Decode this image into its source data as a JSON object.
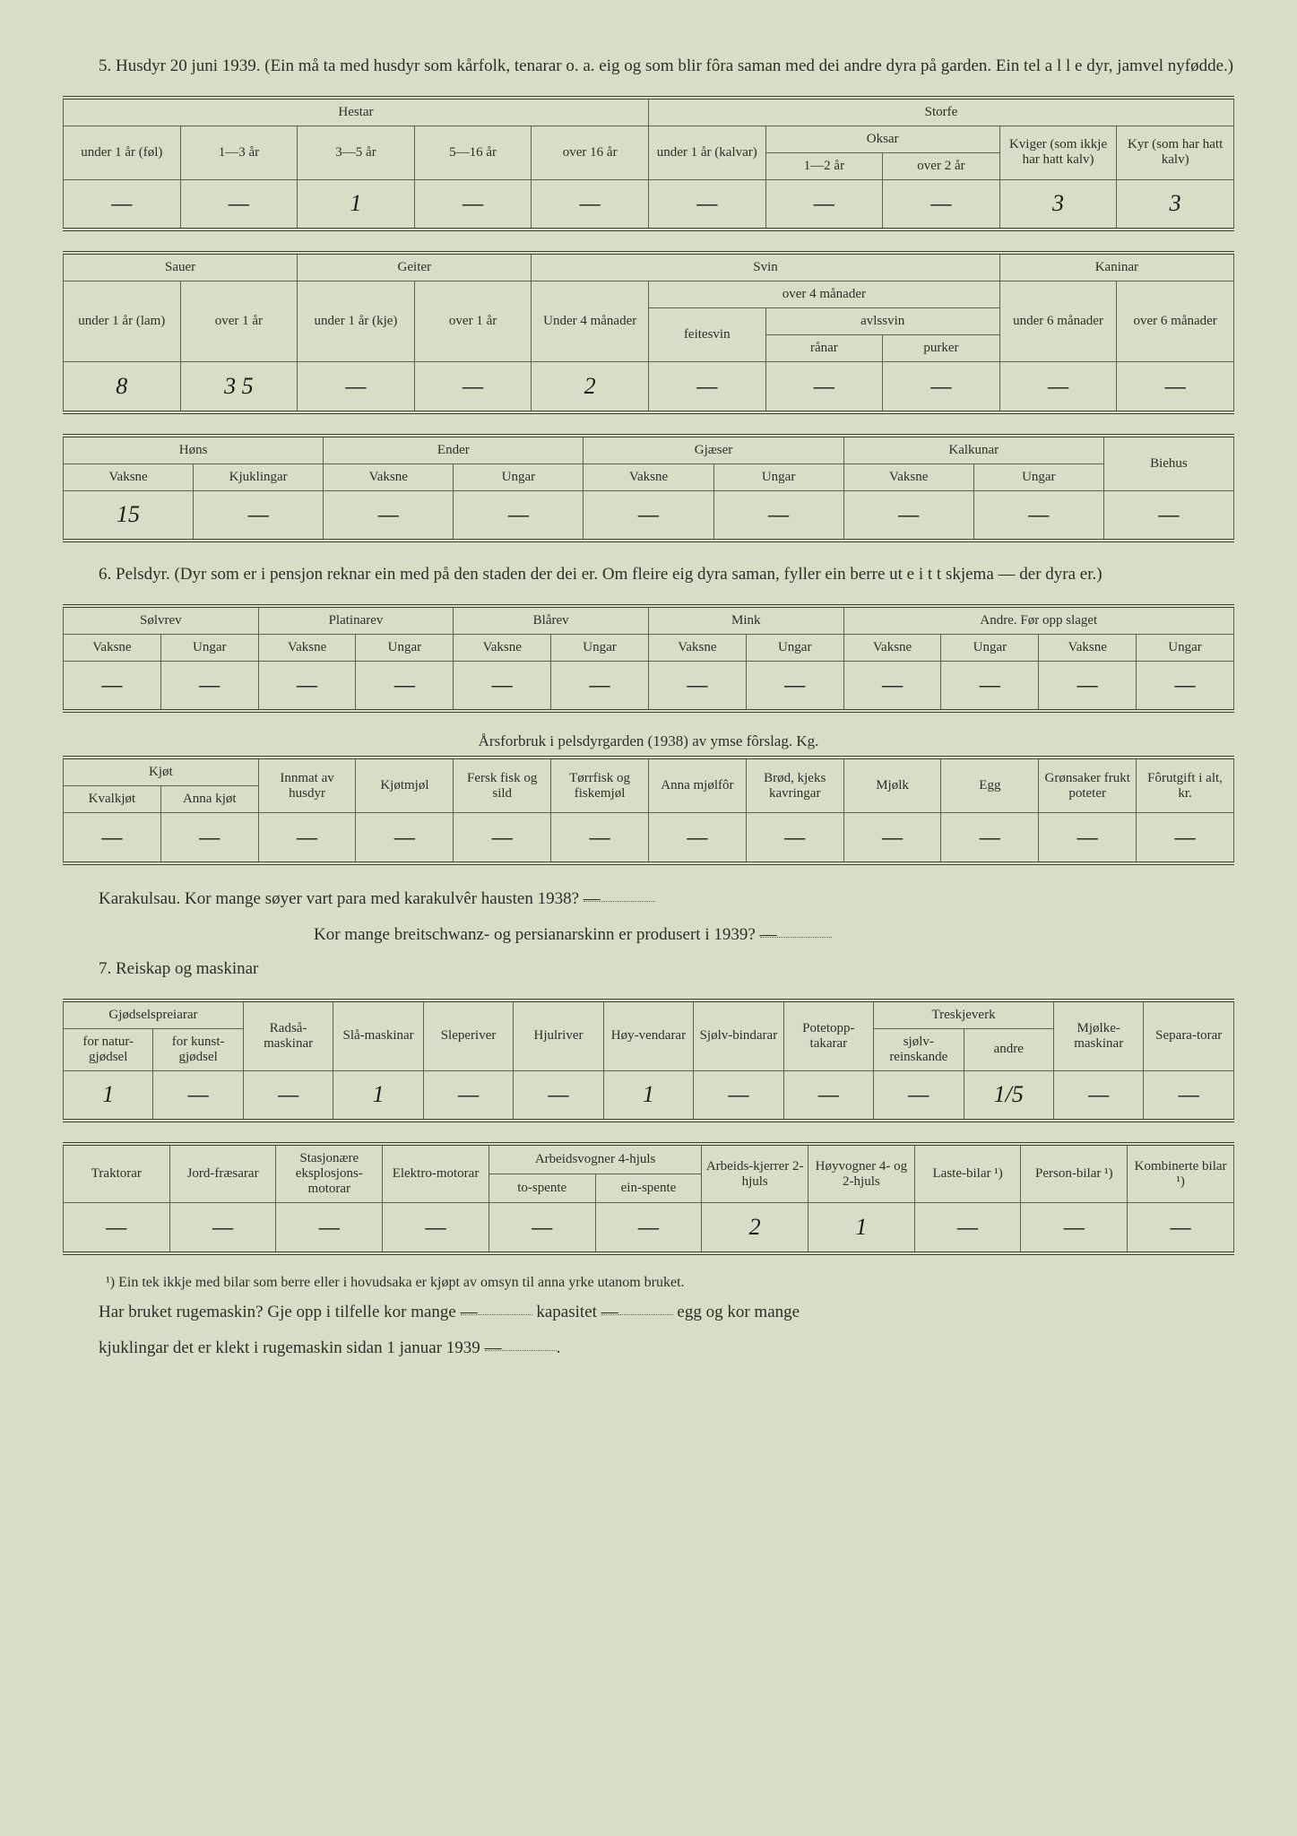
{
  "colors": {
    "paper_bg": "#d5dfc8",
    "ink": "#2a3028",
    "rule": "#5a6254",
    "handwriting": "#1a1a1a"
  },
  "typography": {
    "body_family": "Georgia, 'Times New Roman', serif",
    "body_size_pt": 14,
    "handwriting_family": "'Segoe Script', cursive",
    "handwriting_size_pt": 20
  },
  "s5": {
    "num": "5.",
    "title": "Husdyr 20 juni 1939.  (Ein må ta med husdyr som kårfolk, tenarar o. a. eig og som blir fôra saman med dei andre dyra på garden.  Ein tel a l l e dyr, jamvel nyfødde.)",
    "hestar_storfe": {
      "group_l": "Hestar",
      "group_r": "Storfe",
      "h1": "under 1 år (føl)",
      "h2": "1—3 år",
      "h3": "3—5 år",
      "h4": "5—16 år",
      "h5": "over 16 år",
      "s1": "under 1 år (kalvar)",
      "s2g": "Oksar",
      "s2a": "1—2 år",
      "s2b": "over 2 år",
      "s3": "Kviger (som ikkje har hatt kalv)",
      "s4": "Kyr (som har hatt kalv)",
      "v": [
        "—",
        "—",
        "1",
        "—",
        "—",
        "—",
        "—",
        "—",
        "3",
        "3"
      ]
    },
    "sauer_etc": {
      "g1": "Sauer",
      "g2": "Geiter",
      "g3": "Svin",
      "g4": "Kaninar",
      "sa1": "under 1 år (lam)",
      "sa2": "over 1 år",
      "ge1": "under 1 år (kje)",
      "ge2": "over 1 år",
      "sv1": "Under 4 månader",
      "sv_o4": "over 4 månader",
      "sv2": "feitesvin",
      "sv3g": "avlssvin",
      "sv3a": "rånar",
      "sv3b": "purker",
      "ka1": "under 6 månader",
      "ka2": "over 6 månader",
      "v": [
        "8",
        "3 5",
        "—",
        "—",
        "2",
        "—",
        "—",
        "—",
        "—",
        "—"
      ]
    },
    "fjorfe": {
      "g1": "Høns",
      "g2": "Ender",
      "g3": "Gjæser",
      "g4": "Kalkunar",
      "g5": "Biehus",
      "c1": "Vaksne",
      "c2": "Kjuklingar",
      "c3": "Vaksne",
      "c4": "Ungar",
      "c5": "Vaksne",
      "c6": "Ungar",
      "c7": "Vaksne",
      "c8": "Ungar",
      "v": [
        "15",
        "—",
        "—",
        "—",
        "—",
        "—",
        "—",
        "—",
        "—"
      ]
    }
  },
  "s6": {
    "num": "6.",
    "title": "Pelsdyr.  (Dyr som er i pensjon reknar ein med på den staden der dei er.  Om fleire eig dyra saman, fyller ein berre ut e i t t skjema — der dyra er.)",
    "tbl1": {
      "g1": "Sølvrev",
      "g2": "Platinarev",
      "g3": "Blårev",
      "g4": "Mink",
      "g5": "Andre.  Før opp slaget",
      "va": "Vaksne",
      "un": "Ungar",
      "v": [
        "—",
        "—",
        "—",
        "—",
        "—",
        "—",
        "—",
        "—",
        "—",
        "—",
        "—",
        "—"
      ]
    },
    "caption": "Årsforbruk i pelsdyrgarden (1938) av ymse fôrslag. Kg.",
    "tbl2": {
      "kjg": "Kjøt",
      "k1": "Kvalkjøt",
      "k2": "Anna kjøt",
      "c3": "Innmat av husdyr",
      "c4": "Kjøtmjøl",
      "c5": "Fersk fisk og sild",
      "c6": "Tørrfisk og fiskemjøl",
      "c7": "Anna mjølfôr",
      "c8": "Brød, kjeks kavringar",
      "c9": "Mjølk",
      "c10": "Egg",
      "c11": "Grønsaker frukt poteter",
      "c12": "Fôrutgift i alt, kr.",
      "v": [
        "—",
        "—",
        "—",
        "—",
        "—",
        "—",
        "—",
        "—",
        "—",
        "—",
        "—",
        "—"
      ]
    },
    "karakul1": "Karakulsau.   Kor mange søyer vart para med karakulvêr hausten 1938?",
    "karakul2": "Kor mange breitschwanz- og persianarskinn er produsert i 1939?",
    "kar_v1": "—",
    "kar_v2": "—"
  },
  "s7": {
    "num": "7.",
    "title": "Reiskap og maskinar",
    "tbl1": {
      "g1": "Gjødselspreiarar",
      "g1a": "for natur-gjødsel",
      "g1b": "for kunst-gjødsel",
      "c3": "Radså-maskinar",
      "c4": "Slå-maskinar",
      "c5": "Sleperiver",
      "c6": "Hjulriver",
      "c7": "Høy-vendarar",
      "c8": "Sjølv-bindarar",
      "c9": "Potetopp-takarar",
      "g10": "Treskjeverk",
      "g10a": "sjølv-reinskande",
      "g10b": "andre",
      "c11": "Mjølke-maskinar",
      "c12": "Separa-torar",
      "v": [
        "1",
        "—",
        "—",
        "1",
        "—",
        "—",
        "1",
        "—",
        "—",
        "—",
        "1/5",
        "—",
        "—"
      ]
    },
    "tbl2": {
      "c1": "Traktorar",
      "c2": "Jord-fræsarar",
      "c3": "Stasjonære eksplosjons-motorar",
      "c4": "Elektro-motorar",
      "g5": "Arbeidsvogner 4-hjuls",
      "g5a": "to-spente",
      "g5b": "ein-spente",
      "c6": "Arbeids-kjerrer 2-hjuls",
      "c7": "Høyvogner 4- og 2-hjuls",
      "c8": "Laste-bilar ¹)",
      "c9": "Person-bilar ¹)",
      "c10": "Kombinerte bilar ¹)",
      "v": [
        "—",
        "—",
        "—",
        "—",
        "—",
        "—",
        "2",
        "1",
        "—",
        "—",
        "—"
      ]
    },
    "footnote": "¹) Ein tek ikkje med bilar som berre eller i hovudsaka er kjøpt av omsyn til anna yrke utanom bruket.",
    "q1a": "Har bruket rugemaskin?  Gje opp i tilfelle kor mange",
    "q1b": "kapasitet",
    "q1c": "egg og kor mange",
    "q2": "kjuklingar det er klekt i rugemaskin sidan 1 januar 1939",
    "qv1": "—",
    "qv2": "—",
    "qv3": "—"
  }
}
